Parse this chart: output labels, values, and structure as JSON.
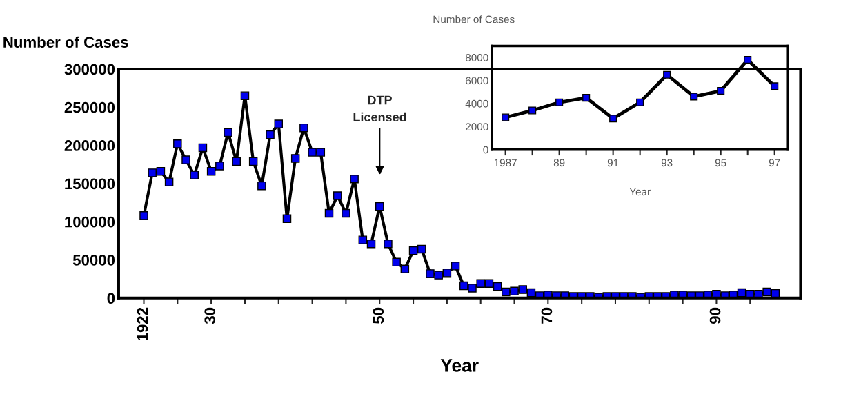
{
  "chart_data": [
    {
      "type": "line",
      "ylabel": "Number of Cases",
      "xlabel": "Year",
      "x": [
        1922,
        1923,
        1924,
        1925,
        1926,
        1927,
        1928,
        1929,
        1930,
        1931,
        1932,
        1933,
        1934,
        1935,
        1936,
        1937,
        1938,
        1939,
        1940,
        1941,
        1942,
        1943,
        1944,
        1945,
        1946,
        1947,
        1948,
        1949,
        1950,
        1951,
        1952,
        1953,
        1954,
        1955,
        1956,
        1957,
        1958,
        1959,
        1960,
        1961,
        1962,
        1963,
        1964,
        1965,
        1966,
        1967,
        1968,
        1969,
        1970,
        1971,
        1972,
        1973,
        1974,
        1975,
        1976,
        1977,
        1978,
        1979,
        1980,
        1981,
        1982,
        1983,
        1984,
        1985,
        1986,
        1987,
        1988,
        1989,
        1990,
        1991,
        1992,
        1993,
        1994,
        1995,
        1996,
        1997
      ],
      "series": [
        {
          "color": "#0000ee",
          "values": [
            108000,
            164000,
            166000,
            152000,
            202000,
            181000,
            161000,
            197000,
            166000,
            173000,
            217000,
            179000,
            265000,
            179000,
            147000,
            214000,
            228000,
            104000,
            183000,
            223000,
            191000,
            191000,
            111000,
            134000,
            111000,
            156000,
            76000,
            71000,
            120000,
            71000,
            47000,
            38000,
            62000,
            64000,
            32000,
            30000,
            33000,
            42000,
            16000,
            13000,
            19000,
            19000,
            15000,
            8000,
            9000,
            11000,
            7000,
            3000,
            4000,
            3000,
            3000,
            2000,
            2000,
            2000,
            1000,
            2000,
            2000,
            2000,
            2000,
            1000,
            2000,
            2000,
            2000,
            4000,
            4000,
            3000,
            3000,
            4000,
            5000,
            3000,
            4000,
            7000,
            5000,
            5000,
            8000,
            6000
          ]
        }
      ],
      "xlim": [
        1919,
        2000
      ],
      "ylim": [
        0,
        300000
      ],
      "xticks": [
        {
          "value": 1922,
          "label": "1922"
        },
        {
          "value": 1926,
          "label": null
        },
        {
          "value": 1930,
          "label": "30"
        },
        {
          "value": 1934,
          "label": null
        },
        {
          "value": 1938,
          "label": null
        },
        {
          "value": 1942,
          "label": null
        },
        {
          "value": 1946,
          "label": null
        },
        {
          "value": 1950,
          "label": "50"
        },
        {
          "value": 1954,
          "label": null
        },
        {
          "value": 1958,
          "label": null
        },
        {
          "value": 1962,
          "label": null
        },
        {
          "value": 1966,
          "label": null
        },
        {
          "value": 1970,
          "label": "70"
        },
        {
          "value": 1974,
          "label": null
        },
        {
          "value": 1978,
          "label": null
        },
        {
          "value": 1982,
          "label": null
        },
        {
          "value": 1986,
          "label": null
        },
        {
          "value": 1990,
          "label": "90"
        },
        {
          "value": 1994,
          "label": null
        }
      ],
      "yticks": [
        0,
        50000,
        100000,
        150000,
        200000,
        250000,
        300000
      ],
      "annotations": [
        "DTP\nLicensed"
      ],
      "marker": "square",
      "line_style": "solid",
      "grid": false
    },
    {
      "type": "line",
      "ylabel": "Number of Cases",
      "xlabel": "Year",
      "x": [
        1987,
        1988,
        1989,
        1990,
        1991,
        1992,
        1993,
        1994,
        1995,
        1996,
        1997
      ],
      "series": [
        {
          "color": "#0000ee",
          "values": [
            2800,
            3400,
            4100,
            4500,
            2700,
            4100,
            6500,
            4600,
            5100,
            7800,
            5500
          ]
        }
      ],
      "xlim": [
        1986.5,
        1997.5
      ],
      "ylim": [
        0,
        9000
      ],
      "xticks": [
        {
          "value": 1987,
          "label": "1987"
        },
        {
          "value": 1988,
          "label": null
        },
        {
          "value": 1989,
          "label": "89"
        },
        {
          "value": 1990,
          "label": null
        },
        {
          "value": 1991,
          "label": "91"
        },
        {
          "value": 1992,
          "label": null
        },
        {
          "value": 1993,
          "label": "93"
        },
        {
          "value": 1994,
          "label": null
        },
        {
          "value": 1995,
          "label": "95"
        },
        {
          "value": 1996,
          "label": null
        },
        {
          "value": 1997,
          "label": "97"
        }
      ],
      "yticks": [
        0,
        2000,
        4000,
        6000,
        8000
      ],
      "marker": "square",
      "line_style": "solid",
      "grid": false
    }
  ]
}
